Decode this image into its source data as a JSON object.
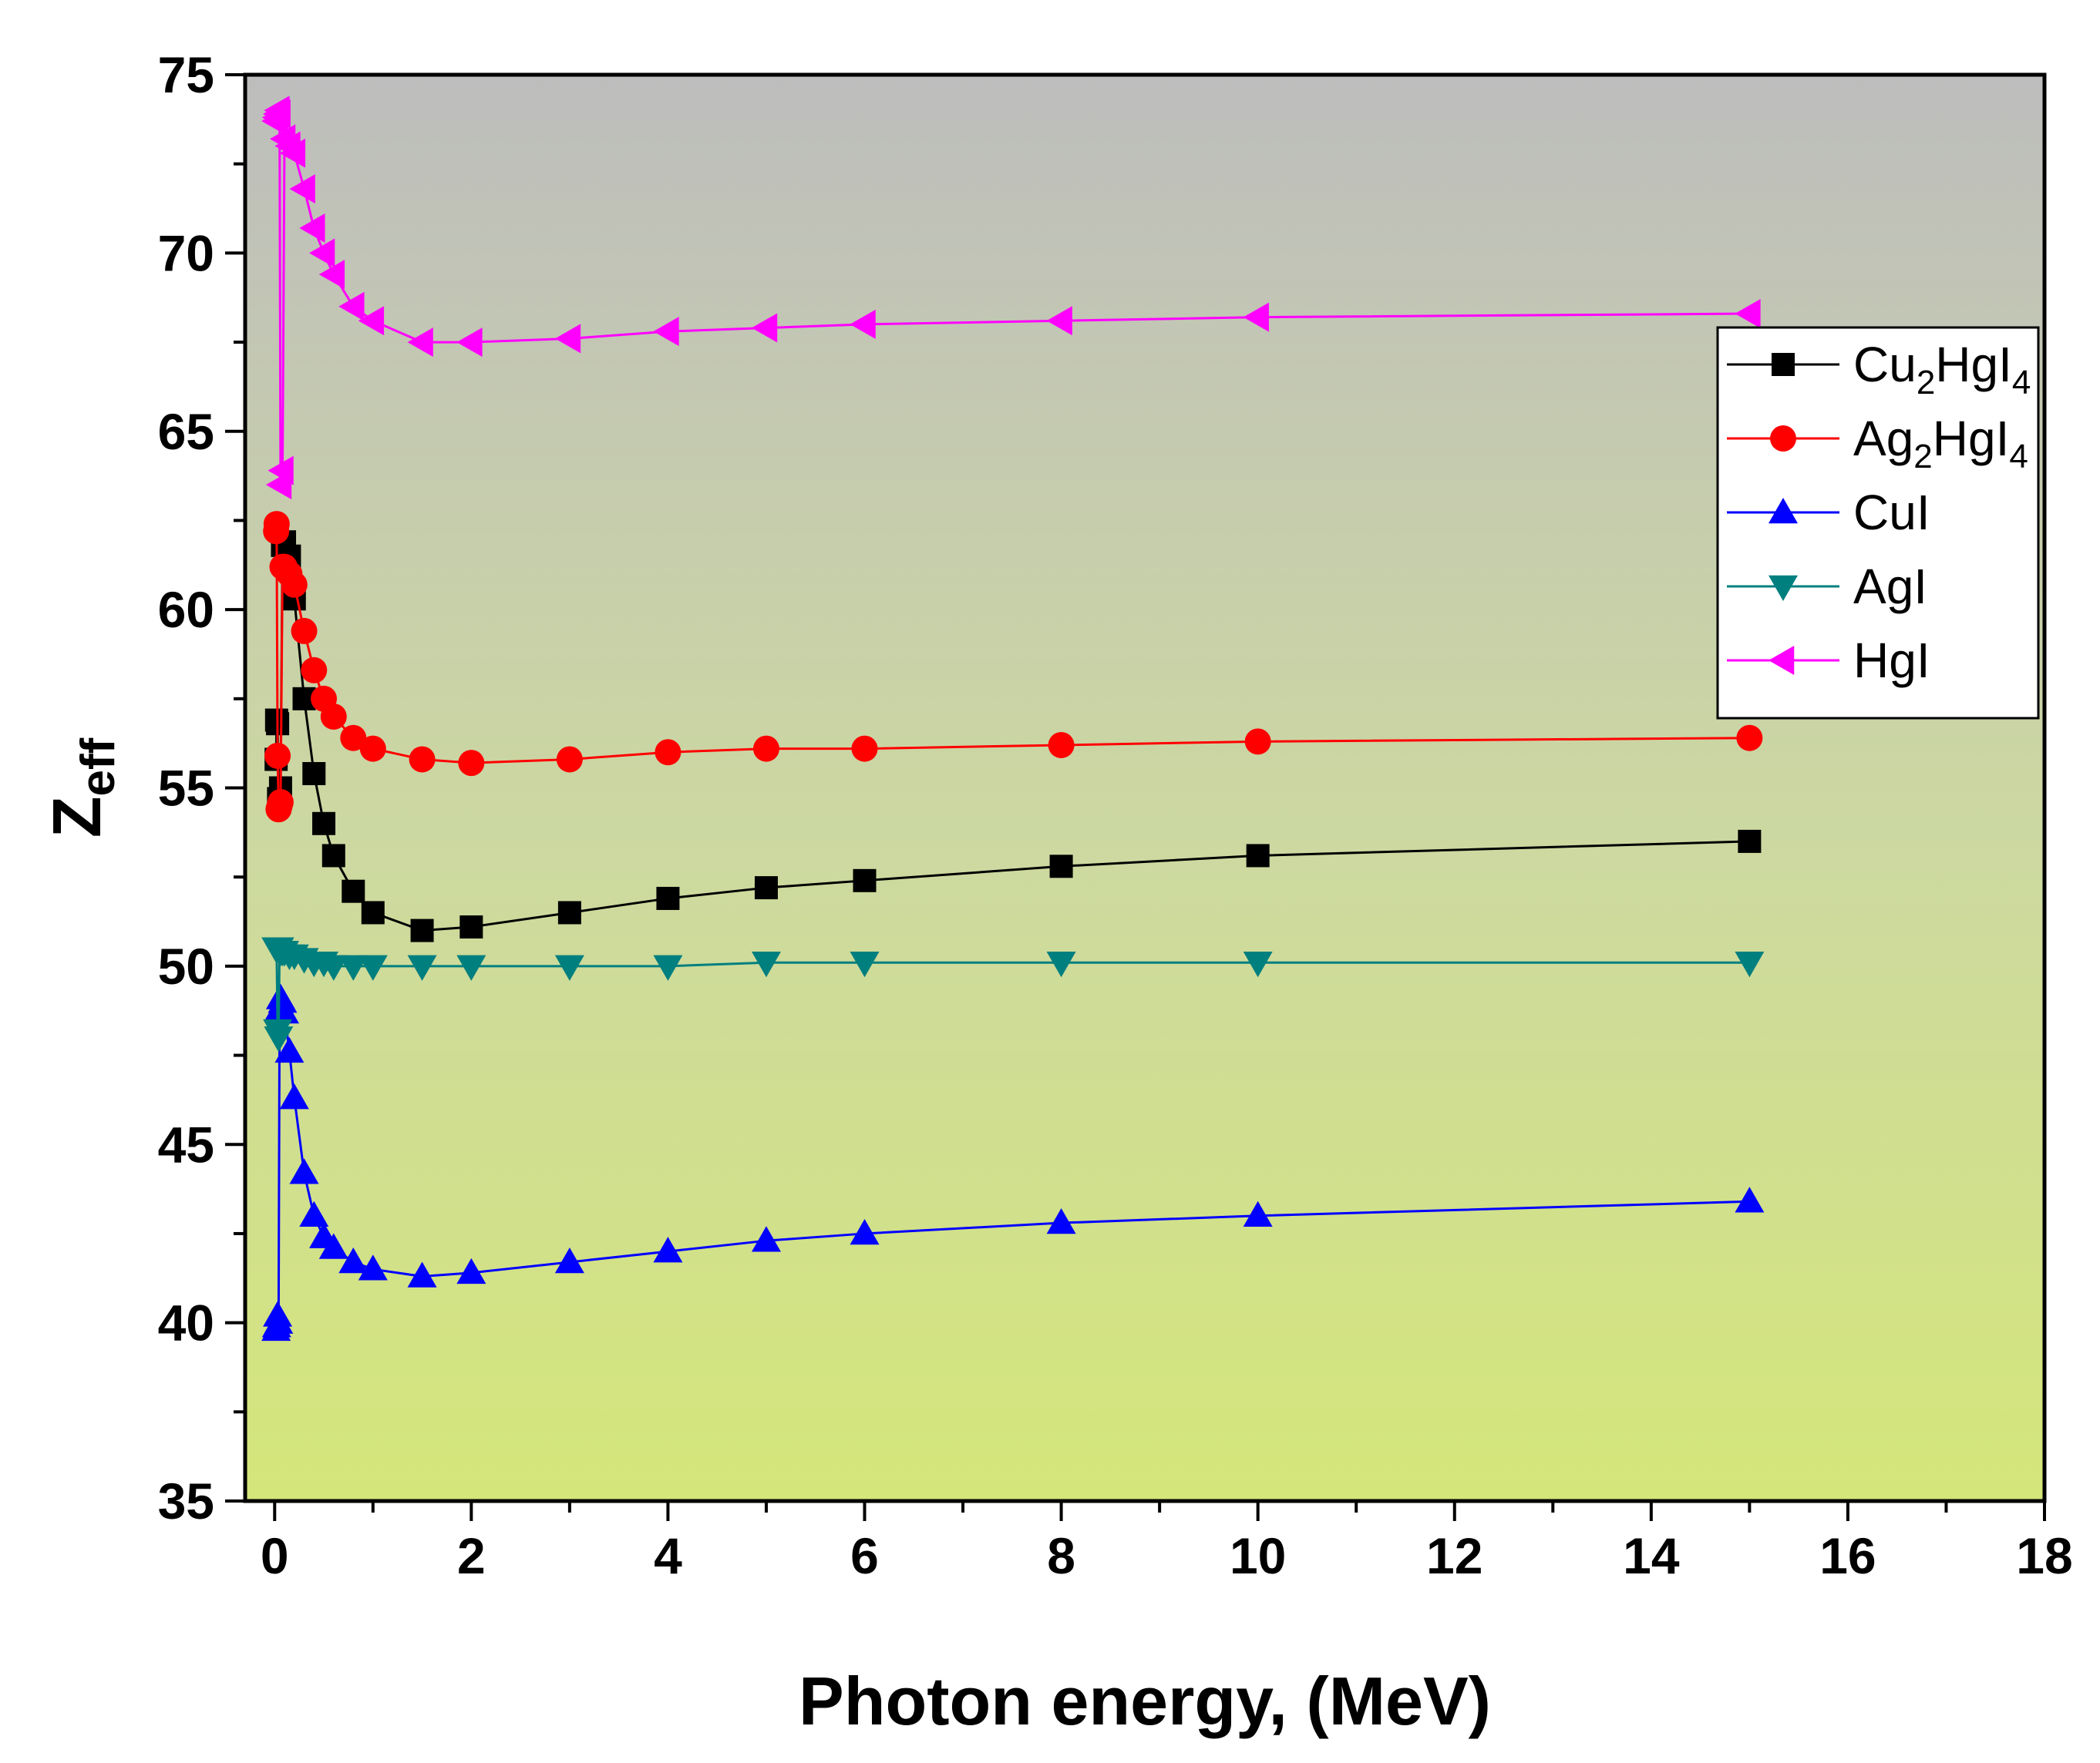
{
  "chart_data": {
    "type": "line",
    "title": "",
    "xlabel": "Photon energy, (MeV)",
    "ylabel": "Z",
    "ylabel_sub": "eff",
    "xlim": [
      -0.3,
      18
    ],
    "ylim": [
      35,
      75
    ],
    "xticks": [
      0,
      2,
      4,
      6,
      8,
      10,
      12,
      14,
      16,
      18
    ],
    "yticks": [
      35,
      40,
      45,
      50,
      55,
      60,
      65,
      70,
      75
    ],
    "grid": false,
    "legend_position": "top-right",
    "background": "vertical gradient from gray (top) to yellow-green (bottom)",
    "series": [
      {
        "name": "Cu2HgI4",
        "legend_parts": [
          [
            "Cu",
            ""
          ],
          [
            "2",
            "sub"
          ],
          [
            "HgI",
            ""
          ],
          [
            "4",
            "sub"
          ]
        ],
        "color": "#000000",
        "marker": "square",
        "x": [
          0.015,
          0.02,
          0.03,
          0.04,
          0.05,
          0.06,
          0.08,
          0.1,
          0.15,
          0.2,
          0.3,
          0.4,
          0.5,
          0.6,
          0.8,
          1,
          1.5,
          2,
          3,
          4,
          5,
          6,
          8,
          10,
          15
        ],
        "y": [
          55.8,
          56.9,
          56.8,
          54.7,
          54.6,
          55.0,
          61.8,
          61.9,
          61.5,
          60.3,
          57.5,
          55.4,
          54.0,
          53.1,
          52.1,
          51.5,
          51.0,
          51.1,
          51.5,
          51.9,
          52.2,
          52.4,
          52.8,
          53.1,
          53.5
        ]
      },
      {
        "name": "Ag2HgI4",
        "legend_parts": [
          [
            "Ag",
            ""
          ],
          [
            "2",
            "sub"
          ],
          [
            "HgI",
            ""
          ],
          [
            "4",
            "sub"
          ]
        ],
        "color": "#ff0000",
        "marker": "circle",
        "x": [
          0.015,
          0.02,
          0.03,
          0.04,
          0.05,
          0.06,
          0.08,
          0.1,
          0.15,
          0.2,
          0.3,
          0.4,
          0.5,
          0.6,
          0.8,
          1,
          1.5,
          2,
          3,
          4,
          5,
          6,
          8,
          10,
          15
        ],
        "y": [
          62.2,
          62.4,
          55.9,
          54.4,
          54.5,
          54.6,
          61.2,
          61.2,
          61.0,
          60.7,
          59.4,
          58.3,
          57.5,
          57.0,
          56.4,
          56.1,
          55.8,
          55.7,
          55.8,
          56.0,
          56.1,
          56.1,
          56.2,
          56.3,
          56.4
        ]
      },
      {
        "name": "CuI",
        "legend_parts": [
          [
            "CuI",
            ""
          ]
        ],
        "color": "#0000ff",
        "marker": "triangle-up",
        "x": [
          0.015,
          0.02,
          0.03,
          0.04,
          0.05,
          0.06,
          0.08,
          0.1,
          0.15,
          0.2,
          0.3,
          0.4,
          0.5,
          0.6,
          0.8,
          1,
          1.5,
          2,
          3,
          4,
          5,
          6,
          8,
          10,
          15
        ],
        "y": [
          39.8,
          39.9,
          40.2,
          40.0,
          48.8,
          49.1,
          49.0,
          48.7,
          47.6,
          46.3,
          44.2,
          43.0,
          42.4,
          42.1,
          41.7,
          41.5,
          41.3,
          41.4,
          41.7,
          42.0,
          42.3,
          42.5,
          42.8,
          43.0,
          43.4
        ]
      },
      {
        "name": "AgI",
        "legend_parts": [
          [
            "AgI",
            ""
          ]
        ],
        "color": "#007f7f",
        "marker": "triangle-down",
        "x": [
          0.015,
          0.02,
          0.03,
          0.04,
          0.05,
          0.06,
          0.08,
          0.1,
          0.15,
          0.2,
          0.3,
          0.4,
          0.5,
          0.6,
          0.8,
          1,
          1.5,
          2,
          3,
          4,
          5,
          6,
          8,
          10,
          15
        ],
        "y": [
          50.5,
          50.5,
          48.2,
          48.0,
          50.5,
          50.4,
          50.4,
          50.4,
          50.3,
          50.3,
          50.2,
          50.1,
          50.1,
          50.0,
          50.0,
          50.0,
          50.0,
          50.0,
          50.0,
          50.0,
          50.1,
          50.1,
          50.1,
          50.1,
          50.1
        ]
      },
      {
        "name": "HgI",
        "legend_parts": [
          [
            "HgI",
            ""
          ]
        ],
        "color": "#ff00ff",
        "marker": "triangle-left",
        "x": [
          0.015,
          0.02,
          0.03,
          0.04,
          0.05,
          0.06,
          0.08,
          0.1,
          0.15,
          0.2,
          0.3,
          0.4,
          0.5,
          0.6,
          0.8,
          1,
          1.5,
          2,
          3,
          4,
          5,
          6,
          8,
          10,
          15
        ],
        "y": [
          73.7,
          73.8,
          73.9,
          74.0,
          73.9,
          63.5,
          63.9,
          73.2,
          73.0,
          72.8,
          71.8,
          70.7,
          70.0,
          69.4,
          68.5,
          68.1,
          67.5,
          67.5,
          67.6,
          67.8,
          67.9,
          68.0,
          68.1,
          68.2,
          68.3
        ]
      }
    ]
  }
}
